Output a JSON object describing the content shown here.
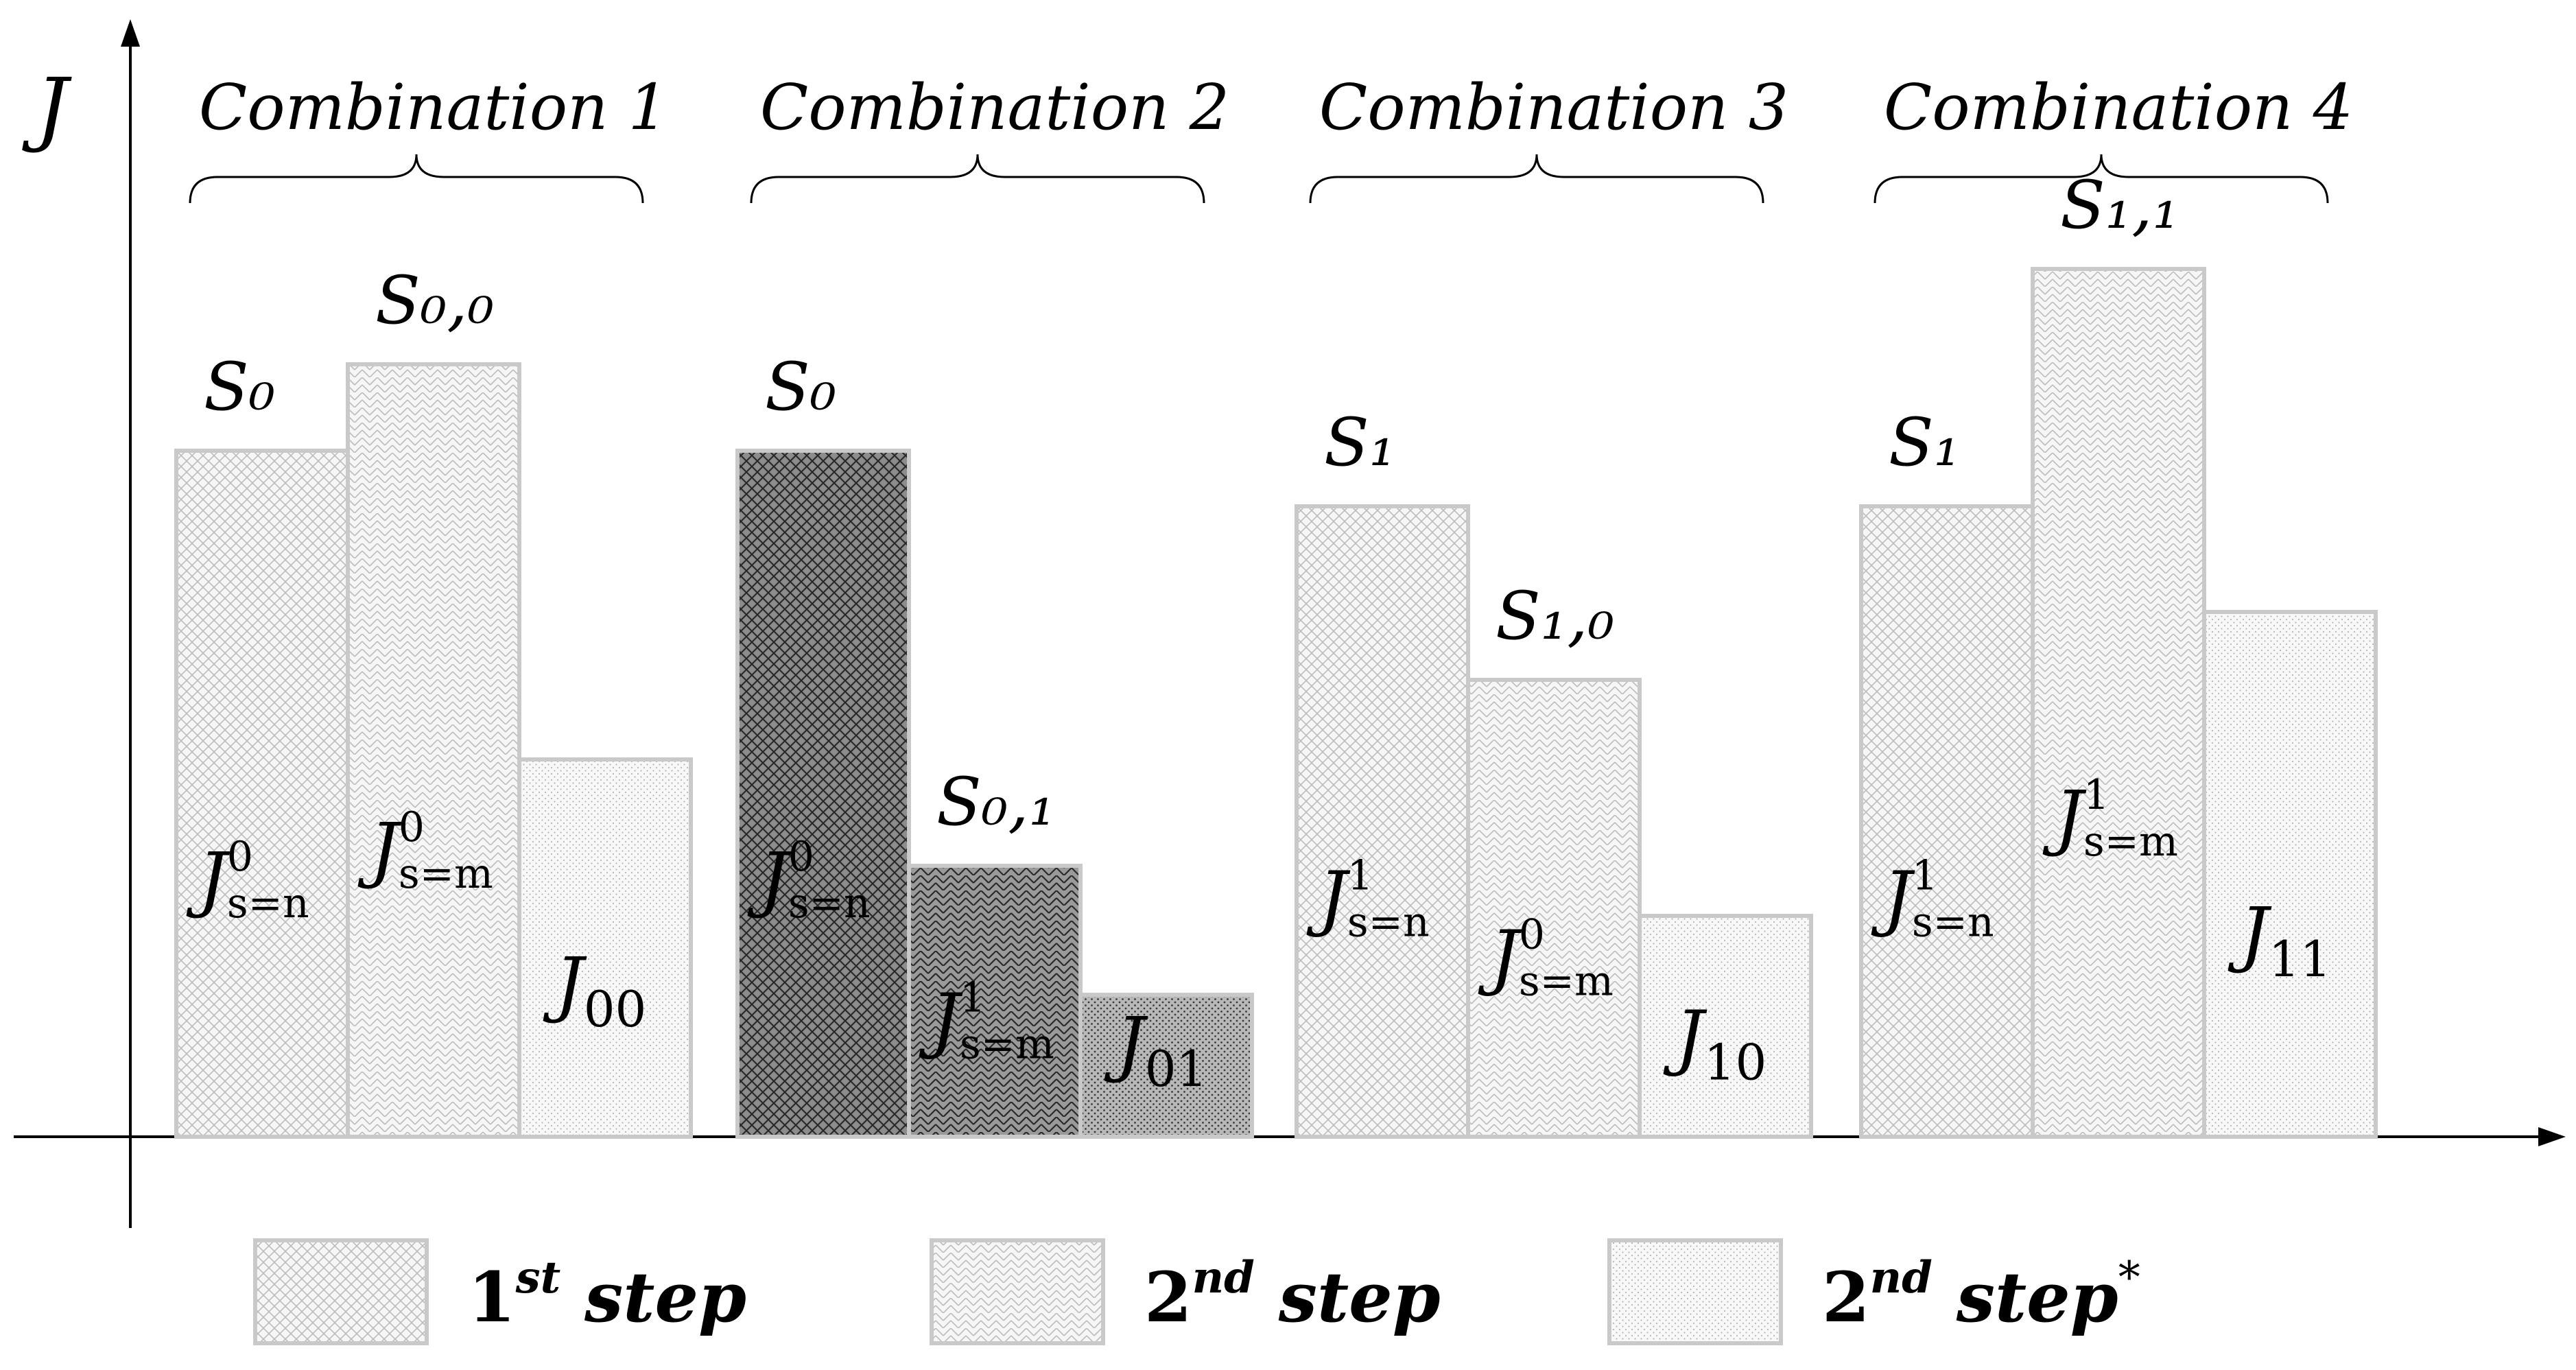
{
  "chart_data": {
    "type": "bar",
    "ylabel": "J",
    "groups": [
      {
        "title": "Combination 1",
        "bars": [
          {
            "step": "step1",
            "value": 100,
            "top_label": "S₀",
            "inner_label": {
              "main": "J",
              "sup": "0",
              "sub": "s=n"
            }
          },
          {
            "step": "step2",
            "value": 112.6,
            "top_label": "S₀,₀",
            "inner_label": {
              "main": "J",
              "sup": "0",
              "sub": "s=m"
            }
          },
          {
            "step": "step2star",
            "value": 55,
            "inner_label": {
              "main": "J",
              "sub": "00"
            }
          }
        ]
      },
      {
        "title": "Combination 2",
        "highlighted": true,
        "bars": [
          {
            "step": "step1",
            "value": 100,
            "top_label": "S₀",
            "inner_label": {
              "main": "J",
              "sup": "0",
              "sub": "s=n"
            }
          },
          {
            "step": "step2",
            "value": 39.5,
            "top_label": "S₀,₁",
            "inner_label": {
              "main": "J",
              "sup": "1",
              "sub": "s=m"
            }
          },
          {
            "step": "step2star",
            "value": 20.7,
            "inner_label": {
              "main": "J",
              "sub": "01"
            }
          }
        ]
      },
      {
        "title": "Combination 3",
        "bars": [
          {
            "step": "step1",
            "value": 91.9,
            "top_label": "S₁",
            "inner_label": {
              "main": "J",
              "sup": "1",
              "sub": "s=n"
            }
          },
          {
            "step": "step2",
            "value": 66.6,
            "top_label": "S₁,₀",
            "inner_label": {
              "main": "J",
              "sup": "0",
              "sub": "s=m"
            }
          },
          {
            "step": "step2star",
            "value": 32.2,
            "inner_label": {
              "main": "J",
              "sub": "10"
            }
          }
        ]
      },
      {
        "title": "Combination 4",
        "bars": [
          {
            "step": "step1",
            "value": 91.9,
            "top_label": "S₁",
            "inner_label": {
              "main": "J",
              "sup": "1",
              "sub": "s=n"
            }
          },
          {
            "step": "step2",
            "value": 126.5,
            "top_label": "S₁,₁",
            "inner_label": {
              "main": "J",
              "sup": "1",
              "sub": "s=m"
            }
          },
          {
            "step": "step2star",
            "value": 76.5,
            "inner_label": {
              "main": "J",
              "sub": "11"
            }
          }
        ]
      }
    ],
    "legend": [
      {
        "key": "step1",
        "num": "1",
        "sup": "st",
        "text": "step",
        "mark": ""
      },
      {
        "key": "step2",
        "num": "2",
        "sup": "nd",
        "text": "step",
        "mark": ""
      },
      {
        "key": "step2star",
        "num": "2",
        "sup": "nd",
        "text": "step",
        "mark": "*"
      }
    ],
    "legend_placement": "bottom",
    "colors": {
      "bar_stroke": "#c9c9c9",
      "light_fill": "#f6f6f6",
      "light_pattern": "#bdbdbd",
      "dark_fill": "#8c8c8c",
      "dark_pattern": "#2a2a2a",
      "axis": "#000000"
    }
  }
}
